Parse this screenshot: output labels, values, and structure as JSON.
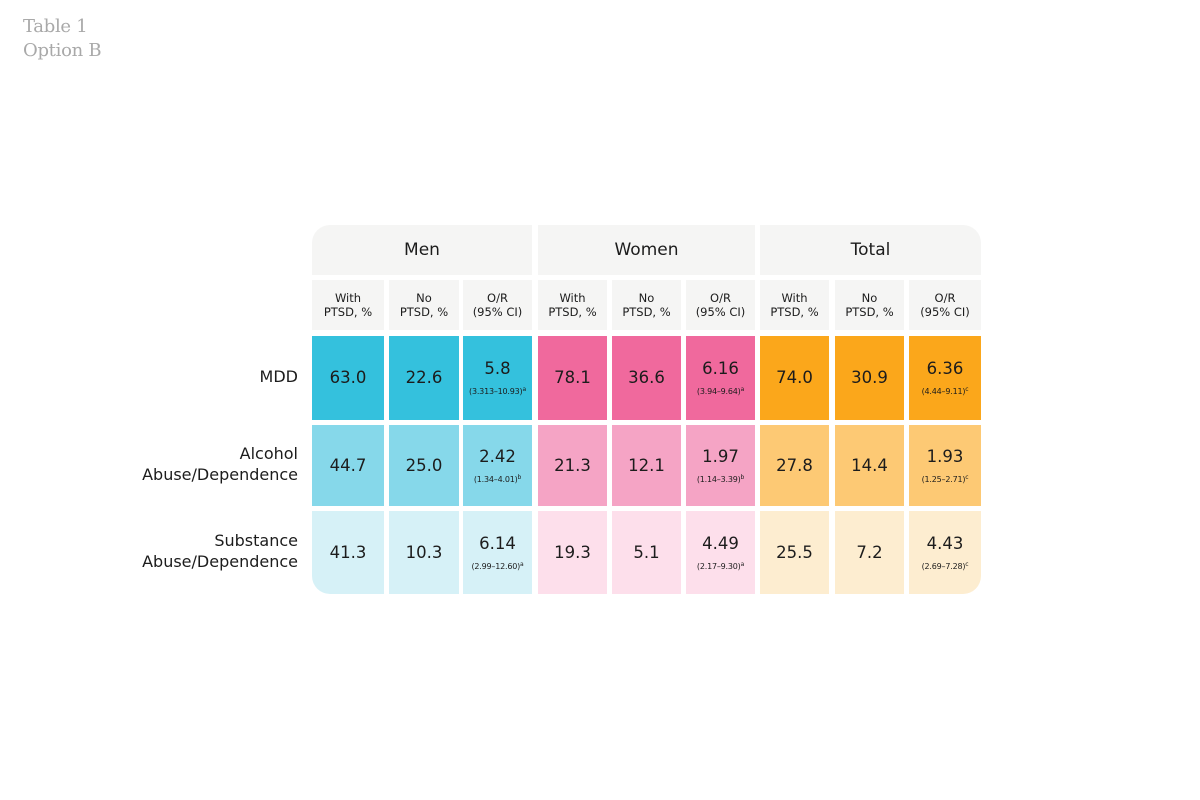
{
  "caption": {
    "line1": "Table 1",
    "line2": "Option B"
  },
  "groups": [
    {
      "label": "Men"
    },
    {
      "label": "Women"
    },
    {
      "label": "Total"
    }
  ],
  "subheaders": [
    {
      "line1": "With",
      "line2": "PTSD, %"
    },
    {
      "line1": "No",
      "line2": "PTSD, %"
    },
    {
      "line1": "O/R",
      "line2": "(95% CI)"
    }
  ],
  "rows": [
    {
      "label_line1": "MDD",
      "label_line2": "",
      "men": {
        "with": "63.0",
        "no": "22.6",
        "or": "5.8",
        "ci": "(3.313–10.93)",
        "sup": "a"
      },
      "women": {
        "with": "78.1",
        "no": "36.6",
        "or": "6.16",
        "ci": "(3.94–9.64)",
        "sup": "a"
      },
      "total": {
        "with": "74.0",
        "no": "30.9",
        "or": "6.36",
        "ci": "(4.44–9.11)",
        "sup": "c"
      }
    },
    {
      "label_line1": "Alcohol",
      "label_line2": "Abuse/Dependence",
      "men": {
        "with": "44.7",
        "no": "25.0",
        "or": "2.42",
        "ci": "(1.34–4.01)",
        "sup": "b"
      },
      "women": {
        "with": "21.3",
        "no": "12.1",
        "or": "1.97",
        "ci": "(1.14–3.39)",
        "sup": "b"
      },
      "total": {
        "with": "27.8",
        "no": "14.4",
        "or": "1.93",
        "ci": "(1.25–2.71)",
        "sup": "c"
      }
    },
    {
      "label_line1": "Substance",
      "label_line2": "Abuse/Dependence",
      "men": {
        "with": "41.3",
        "no": "10.3",
        "or": "6.14",
        "ci": "(2.99–12.60)",
        "sup": "a"
      },
      "women": {
        "with": "19.3",
        "no": "5.1",
        "or": "4.49",
        "ci": "(2.17–9.30)",
        "sup": "a"
      },
      "total": {
        "with": "25.5",
        "no": "7.2",
        "or": "4.43",
        "ci": "(2.69–7.28)",
        "sup": "c"
      }
    }
  ],
  "colors": {
    "header_bg": "#f5f5f4",
    "men": [
      "#34c1dd",
      "#86d8ea",
      "#d6f1f7"
    ],
    "women": [
      "#f0699d",
      "#f5a4c5",
      "#fddfeb"
    ],
    "total": [
      "#fba71b",
      "#fdc974",
      "#fdedd0"
    ]
  }
}
